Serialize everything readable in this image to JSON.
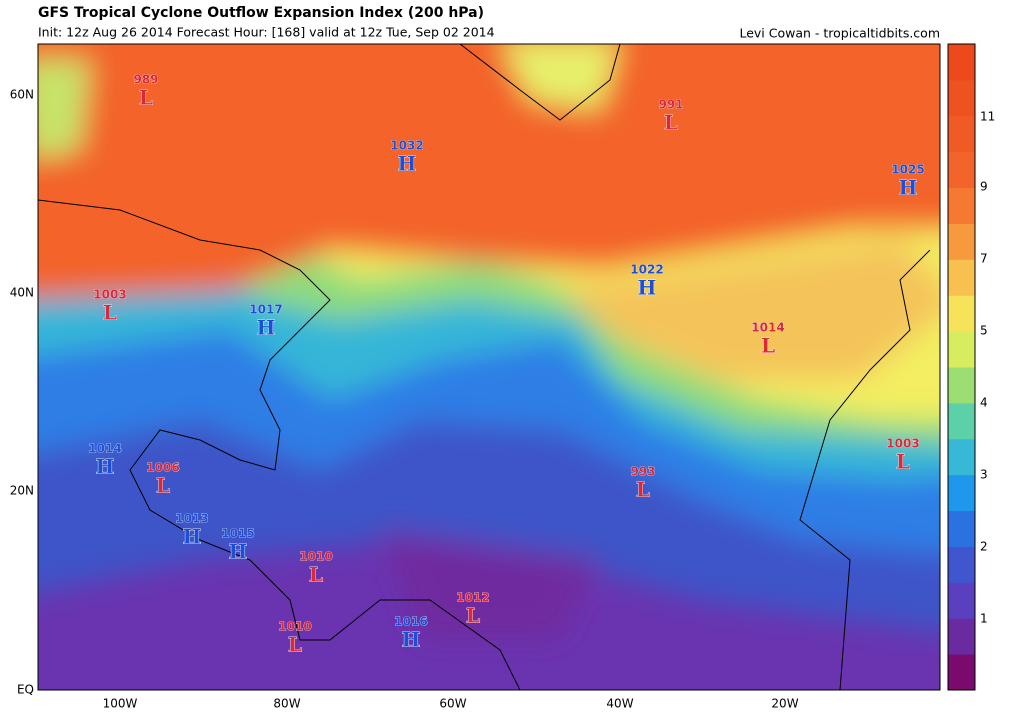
{
  "header": {
    "title": "GFS Tropical Cyclone Outflow Expansion Index (200 hPa)",
    "subtitle": "Init: 12z Aug 26 2014 Forecast Hour: [168] valid at 12z Tue, Sep 02 2014",
    "credit": "Levi Cowan - tropicaltidbits.com"
  },
  "lat_labels": [
    "60N",
    "40N",
    "20N",
    "EQ"
  ],
  "lon_labels": [
    "100W",
    "80W",
    "60W",
    "40W",
    "20W"
  ],
  "colorbar_labels": [
    "11",
    "9",
    "7",
    "5",
    "4",
    "3",
    "2",
    "1"
  ],
  "centers": [
    {
      "pressure": "989",
      "type": "L"
    },
    {
      "pressure": "991",
      "type": "L"
    },
    {
      "pressure": "1032",
      "type": "H"
    },
    {
      "pressure": "1025",
      "type": "H"
    },
    {
      "pressure": "1022",
      "type": "H"
    },
    {
      "pressure": "1003",
      "type": "L"
    },
    {
      "pressure": "1017",
      "type": "H"
    },
    {
      "pressure": "1014",
      "type": "L"
    },
    {
      "pressure": "1014",
      "type": "H"
    },
    {
      "pressure": "1006",
      "type": "L"
    },
    {
      "pressure": "1003",
      "type": "L"
    },
    {
      "pressure": "993",
      "type": "L"
    },
    {
      "pressure": "1013",
      "type": "H"
    },
    {
      "pressure": "1015",
      "type": "H"
    },
    {
      "pressure": "1010",
      "type": "L"
    },
    {
      "pressure": "1012",
      "type": "L"
    },
    {
      "pressure": "1010",
      "type": "L"
    },
    {
      "pressure": "1016",
      "type": "H"
    }
  ]
}
